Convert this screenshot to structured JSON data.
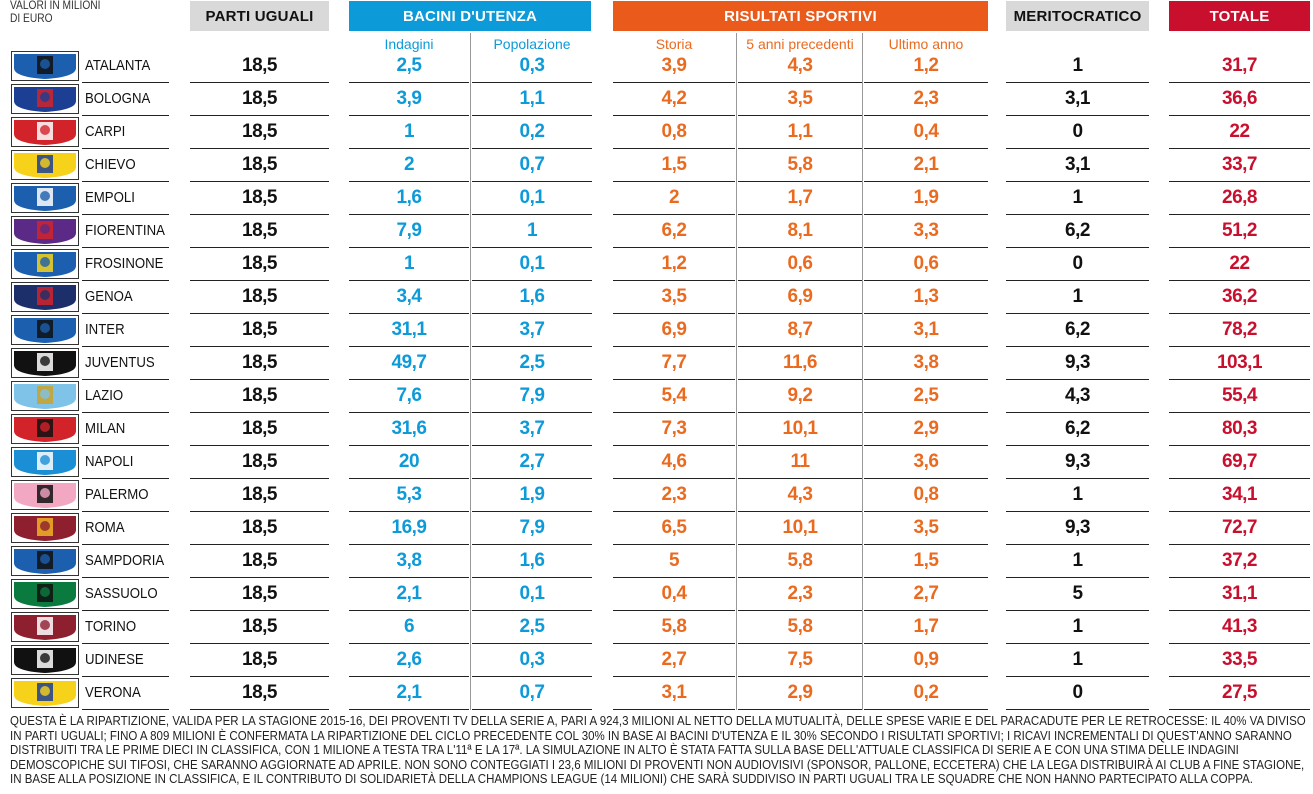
{
  "unit_label": "VALORI IN MILIONI DI EURO",
  "groups": {
    "parti_uguali": "PARTI UGUALI",
    "bacini": "BACINI D'UTENZA",
    "risultati": "RISULTATI SPORTIVI",
    "meritocratico": "MERITOCRATICO",
    "totale": "TOTALE"
  },
  "subheaders": {
    "indagini": "Indagini",
    "popolazione": "Popolazione",
    "storia": "Storia",
    "cinque_anni": "5 anni precedenti",
    "ultimo_anno": "Ultimo anno"
  },
  "colors": {
    "grey": "#d9d9d9",
    "blue": "#0d9ad8",
    "orange": "#ea5a1b",
    "red": "#c8102e"
  },
  "rows": [
    {
      "team": "ATALANTA",
      "parti": "18,5",
      "indagini": "2,5",
      "popolazione": "0,3",
      "storia": "3,9",
      "cinque": "4,3",
      "ultimo": "1,2",
      "merito": "1",
      "totale": "31,7",
      "logo": "atalanta-logo",
      "c1": "#1b5fae",
      "c2": "#111111"
    },
    {
      "team": "BOLOGNA",
      "parti": "18,5",
      "indagini": "3,9",
      "popolazione": "1,1",
      "storia": "4,2",
      "cinque": "3,5",
      "ultimo": "2,3",
      "merito": "3,1",
      "totale": "36,6",
      "logo": "bologna-logo",
      "c1": "#1c3f94",
      "c2": "#d2232a"
    },
    {
      "team": "CARPI",
      "parti": "18,5",
      "indagini": "1",
      "popolazione": "0,2",
      "storia": "0,8",
      "cinque": "1,1",
      "ultimo": "0,4",
      "merito": "0",
      "totale": "22",
      "logo": "carpi-logo",
      "c1": "#d2232a",
      "c2": "#ffffff"
    },
    {
      "team": "CHIEVO",
      "parti": "18,5",
      "indagini": "2",
      "popolazione": "0,7",
      "storia": "1,5",
      "cinque": "5,8",
      "ultimo": "2,1",
      "merito": "3,1",
      "totale": "33,7",
      "logo": "chievo-logo",
      "c1": "#f6d21b",
      "c2": "#1c3f94"
    },
    {
      "team": "EMPOLI",
      "parti": "18,5",
      "indagini": "1,6",
      "popolazione": "0,1",
      "storia": "2",
      "cinque": "1,7",
      "ultimo": "1,9",
      "merito": "1",
      "totale": "26,8",
      "logo": "empoli-logo",
      "c1": "#1b5fae",
      "c2": "#ffffff"
    },
    {
      "team": "FIORENTINA",
      "parti": "18,5",
      "indagini": "7,9",
      "popolazione": "1",
      "storia": "6,2",
      "cinque": "8,1",
      "ultimo": "3,3",
      "merito": "6,2",
      "totale": "51,2",
      "logo": "fiorentina-logo",
      "c1": "#5b2a86",
      "c2": "#d2232a"
    },
    {
      "team": "FROSINONE",
      "parti": "18,5",
      "indagini": "1",
      "popolazione": "0,1",
      "storia": "1,2",
      "cinque": "0,6",
      "ultimo": "0,6",
      "merito": "0",
      "totale": "22",
      "logo": "frosinone-logo",
      "c1": "#1b5fae",
      "c2": "#f6d21b"
    },
    {
      "team": "GENOA",
      "parti": "18,5",
      "indagini": "3,4",
      "popolazione": "1,6",
      "storia": "3,5",
      "cinque": "6,9",
      "ultimo": "1,3",
      "merito": "1",
      "totale": "36,2",
      "logo": "genoa-logo",
      "c1": "#1c2f6b",
      "c2": "#d2232a"
    },
    {
      "team": "INTER",
      "parti": "18,5",
      "indagini": "31,1",
      "popolazione": "3,7",
      "storia": "6,9",
      "cinque": "8,7",
      "ultimo": "3,1",
      "merito": "6,2",
      "totale": "78,2",
      "logo": "inter-logo",
      "c1": "#1b5fae",
      "c2": "#111111"
    },
    {
      "team": "JUVENTUS",
      "parti": "18,5",
      "indagini": "49,7",
      "popolazione": "2,5",
      "storia": "7,7",
      "cinque": "11,6",
      "ultimo": "3,8",
      "merito": "9,3",
      "totale": "103,1",
      "logo": "juventus-logo",
      "c1": "#111111",
      "c2": "#ffffff"
    },
    {
      "team": "LAZIO",
      "parti": "18,5",
      "indagini": "7,6",
      "popolazione": "7,9",
      "storia": "5,4",
      "cinque": "9,2",
      "ultimo": "2,5",
      "merito": "4,3",
      "totale": "55,4",
      "logo": "lazio-logo",
      "c1": "#7fc3e8",
      "c2": "#c9a227"
    },
    {
      "team": "MILAN",
      "parti": "18,5",
      "indagini": "31,6",
      "popolazione": "3,7",
      "storia": "7,3",
      "cinque": "10,1",
      "ultimo": "2,9",
      "merito": "6,2",
      "totale": "80,3",
      "logo": "milan-logo",
      "c1": "#d2232a",
      "c2": "#111111"
    },
    {
      "team": "NAPOLI",
      "parti": "18,5",
      "indagini": "20",
      "popolazione": "2,7",
      "storia": "4,6",
      "cinque": "11",
      "ultimo": "3,6",
      "merito": "9,3",
      "totale": "69,7",
      "logo": "napoli-logo",
      "c1": "#1b8fd6",
      "c2": "#ffffff"
    },
    {
      "team": "PALERMO",
      "parti": "18,5",
      "indagini": "5,3",
      "popolazione": "1,9",
      "storia": "2,3",
      "cinque": "4,3",
      "ultimo": "0,8",
      "merito": "1",
      "totale": "34,1",
      "logo": "palermo-logo",
      "c1": "#f2a7c3",
      "c2": "#111111"
    },
    {
      "team": "ROMA",
      "parti": "18,5",
      "indagini": "16,9",
      "popolazione": "7,9",
      "storia": "6,5",
      "cinque": "10,1",
      "ultimo": "3,5",
      "merito": "9,3",
      "totale": "72,7",
      "logo": "roma-logo",
      "c1": "#8e1f2f",
      "c2": "#f0b323"
    },
    {
      "team": "SAMPDORIA",
      "parti": "18,5",
      "indagini": "3,8",
      "popolazione": "1,6",
      "storia": "5",
      "cinque": "5,8",
      "ultimo": "1,5",
      "merito": "1",
      "totale": "37,2",
      "logo": "sampdoria-logo",
      "c1": "#1b5fae",
      "c2": "#111111"
    },
    {
      "team": "SASSUOLO",
      "parti": "18,5",
      "indagini": "2,1",
      "popolazione": "0,1",
      "storia": "0,4",
      "cinque": "2,3",
      "ultimo": "2,7",
      "merito": "5",
      "totale": "31,1",
      "logo": "sassuolo-logo",
      "c1": "#0b7a3e",
      "c2": "#111111"
    },
    {
      "team": "TORINO",
      "parti": "18,5",
      "indagini": "6",
      "popolazione": "2,5",
      "storia": "5,8",
      "cinque": "5,8",
      "ultimo": "1,7",
      "merito": "1",
      "totale": "41,3",
      "logo": "torino-logo",
      "c1": "#8e1f2f",
      "c2": "#ffffff"
    },
    {
      "team": "UDINESE",
      "parti": "18,5",
      "indagini": "2,6",
      "popolazione": "0,3",
      "storia": "2,7",
      "cinque": "7,5",
      "ultimo": "0,9",
      "merito": "1",
      "totale": "33,5",
      "logo": "udinese-logo",
      "c1": "#111111",
      "c2": "#ffffff"
    },
    {
      "team": "VERONA",
      "parti": "18,5",
      "indagini": "2,1",
      "popolazione": "0,7",
      "storia": "3,1",
      "cinque": "2,9",
      "ultimo": "0,2",
      "merito": "0",
      "totale": "27,5",
      "logo": "verona-logo",
      "c1": "#f6d21b",
      "c2": "#1c3f94"
    }
  ],
  "note": "QUESTA È LA RIPARTIZIONE, VALIDA PER LA STAGIONE 2015-16, DEI PROVENTI TV DELLA SERIE A, PARI A 924,3 MILIONI AL NETTO DELLA MUTUALITÀ, DELLE SPESE VARIE E DEL PARACADUTE PER LE RETROCESSE: IL 40% VA DIVISO IN PARTI UGUALI; FINO A 809 MILIONI È CONFERMATA LA RIPARTIZIONE DEL CICLO PRECEDENTE COL 30% IN BASE AI BACINI D'UTENZA E IL 30% SECONDO I RISULTATI SPORTIVI; I RICAVI INCREMENTALI DI QUEST'ANNO SARANNO DISTRIBUITI TRA LE PRIME DIECI IN CLASSIFICA, CON 1 MILIONE A TESTA TRA L'11ª E LA 17ª. LA SIMULAZIONE IN ALTO È STATA FATTA SULLA BASE DELL'ATTUALE CLASSIFICA DI SERIE A E CON UNA STIMA DELLE INDAGINI DEMOSCOPICHE SUI TIFOSI, CHE SARANNO AGGIORNATE AD APRILE. NON SONO CONTEGGIATI I 23,6 MILIONI DI PROVENTI NON AUDIOVISIVI (SPONSOR, PALLONE, ECCETERA) CHE LA LEGA DISTRIBUIRÀ AI CLUB A FINE STAGIONE, IN BASE ALLA POSIZIONE IN CLASSIFICA, E IL CONTRIBUTO DI SOLIDARIETÀ DELLA CHAMPIONS LEAGUE (14 MILIONI) CHE SARÀ SUDDIVISO IN PARTI UGUALI TRA LE SQUADRE CHE NON HANNO PARTECIPATO ALLA COPPA."
}
